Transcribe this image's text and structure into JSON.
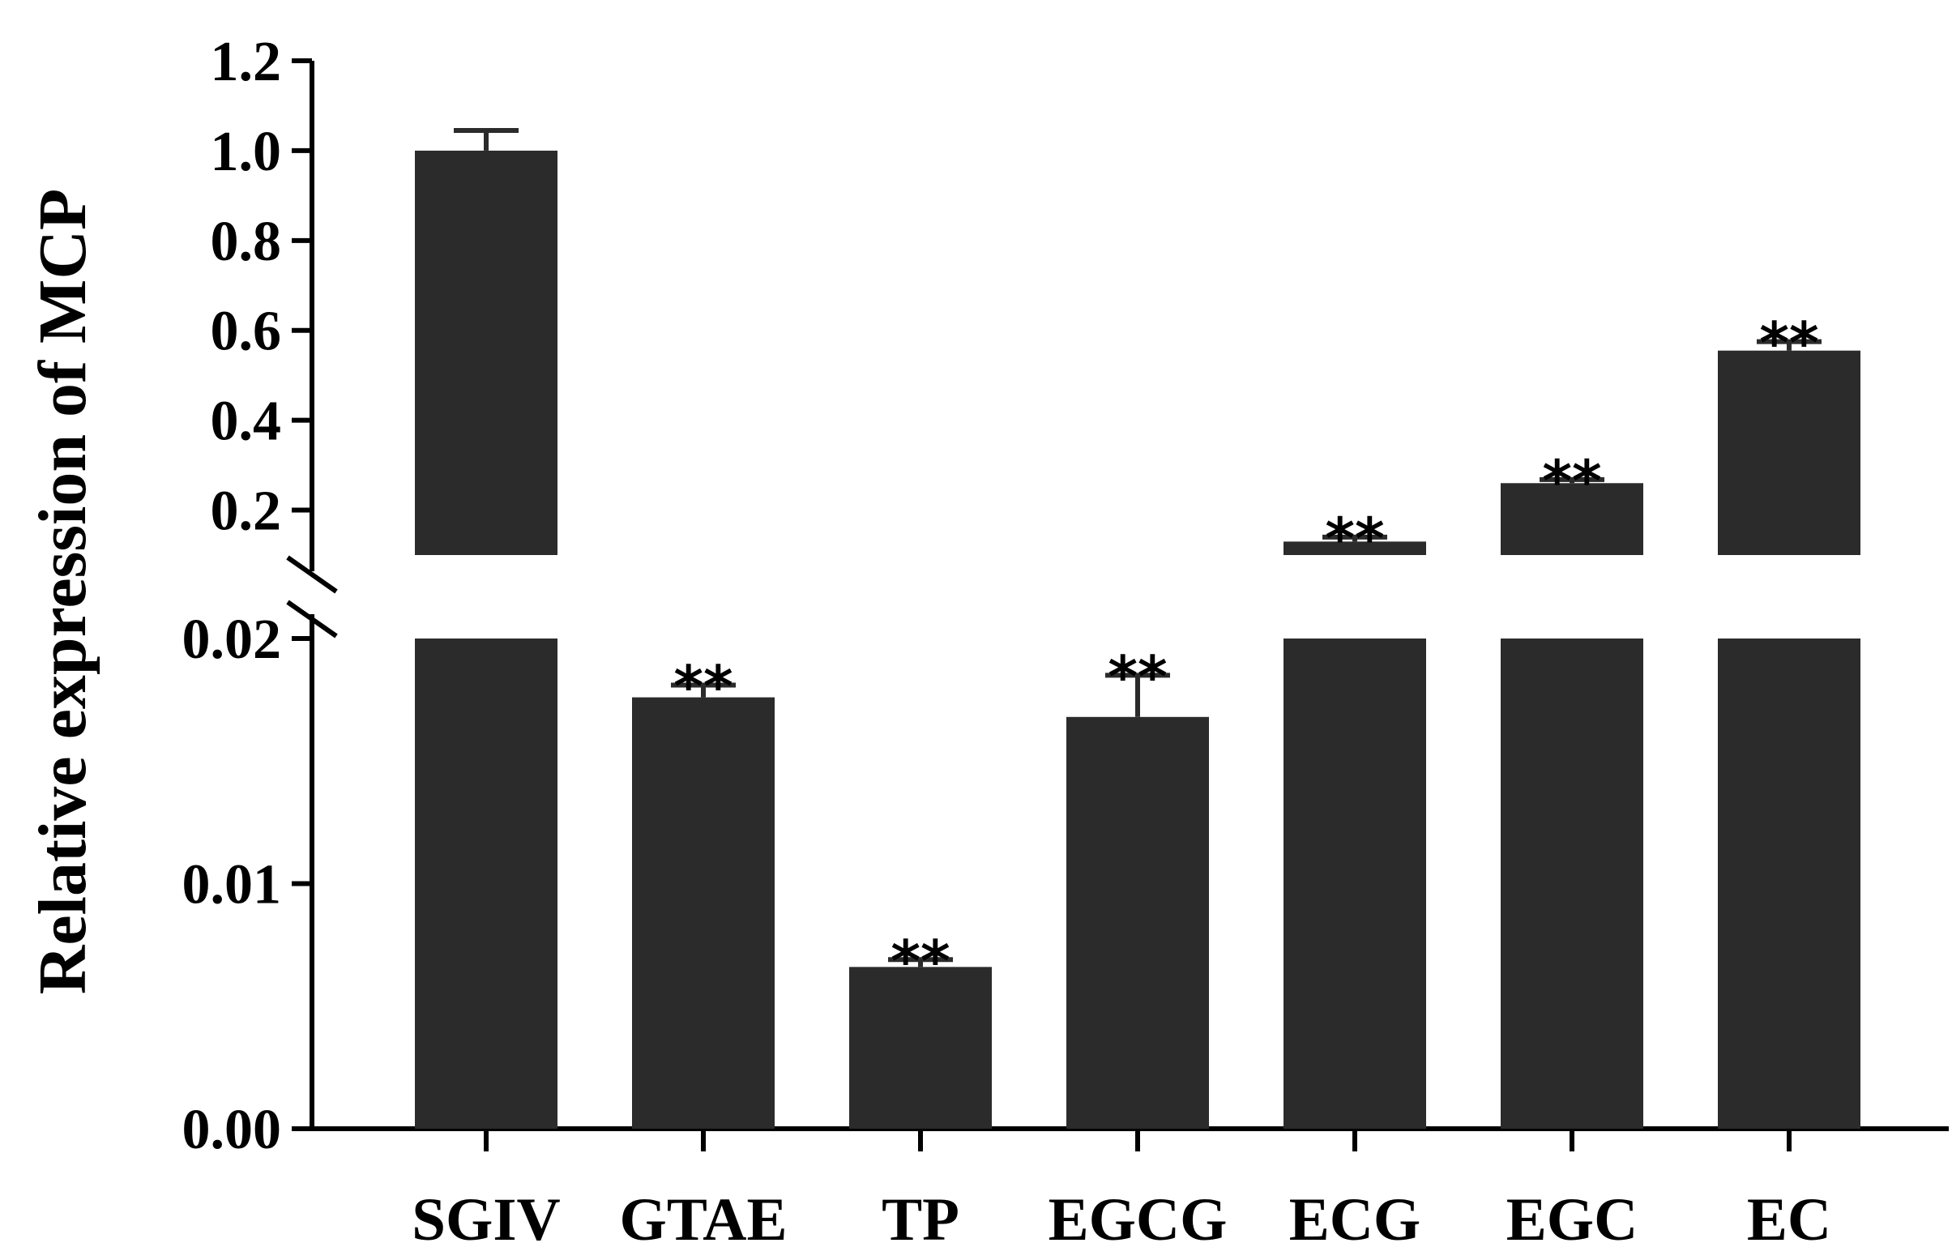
{
  "chart_data": {
    "type": "bar",
    "ylabel": "Relative expression of MCP",
    "y_axis": "broken",
    "lower_segment": {
      "ylim": [
        0,
        0.02
      ],
      "ticks": [
        "0.00",
        "0.01",
        "0.02"
      ]
    },
    "upper_segment": {
      "ylim": [
        0.1,
        1.2
      ],
      "ticks": [
        "0.2",
        "0.4",
        "0.6",
        "0.8",
        "1.0",
        "1.2"
      ]
    },
    "categories": [
      "SGIV",
      "GTAE",
      "TP",
      "EGCG",
      "ECG",
      "EGC",
      "EC"
    ],
    "values": [
      1.0,
      0.0176,
      0.0066,
      0.0168,
      0.13,
      0.26,
      0.555
    ],
    "errors": [
      0.045,
      0.0005,
      0.0003,
      0.0017,
      0.01,
      0.008,
      0.02
    ],
    "significance": [
      "",
      "**",
      "**",
      "**",
      "**",
      "**",
      "**"
    ],
    "bar_color": "#2b2b2b"
  }
}
